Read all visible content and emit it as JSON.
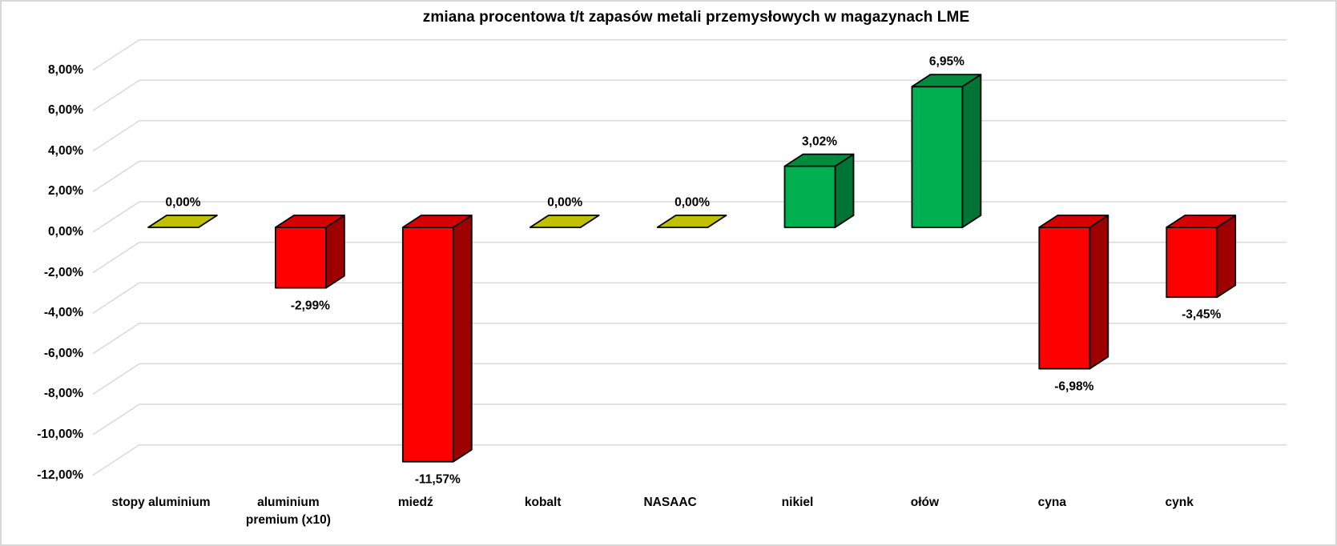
{
  "window": {
    "background": "#FFFFFF",
    "frame_border_color": "#D8D8D8"
  },
  "chart_data": {
    "type": "bar",
    "style": "3d-column",
    "title": "zmiana procentowa t/t zapasów metali przemysłowych w magazynach LME",
    "categories": [
      "stopy aluminium",
      "aluminium premium (x10)",
      "miedź",
      "kobalt",
      "NASAAC",
      "nikiel",
      "ołów",
      "cyna",
      "cynk"
    ],
    "category_lines": [
      [
        "stopy aluminium"
      ],
      [
        "aluminium",
        "premium (x10)"
      ],
      [
        "miedź"
      ],
      [
        "kobalt"
      ],
      [
        "NASAAC"
      ],
      [
        "nikiel"
      ],
      [
        "ołów"
      ],
      [
        "cyna"
      ],
      [
        "cynk"
      ]
    ],
    "values": [
      0,
      -2.99,
      -11.57,
      0,
      0,
      3.02,
      6.95,
      -6.98,
      -3.45
    ],
    "value_labels": [
      "0,00%",
      "-2,99%",
      "-11,57%",
      "0,00%",
      "0,00%",
      "3,02%",
      "6,95%",
      "-6,98%",
      "-3,45%"
    ],
    "xlabel": "",
    "ylabel": "",
    "ylim": [
      -12,
      8
    ],
    "y_ticks": [
      8,
      6,
      4,
      2,
      0,
      -2,
      -4,
      -6,
      -8,
      -10,
      -12
    ],
    "y_tick_labels": [
      "8,00%",
      "6,00%",
      "4,00%",
      "2,00%",
      "0,00%",
      "-2,00%",
      "-4,00%",
      "-6,00%",
      "-8,00%",
      "-10,00%",
      "-12,00%"
    ],
    "grid": true,
    "legend": false,
    "colors": {
      "positive_front": "#00B050",
      "positive_top": "#008B3D",
      "positive_side": "#007434",
      "negative_front": "#FE0000",
      "negative_top": "#D60000",
      "negative_side": "#9E0000",
      "zero_marker": "#C0C000",
      "outline": "#000000",
      "gridline": "#D9D9D9",
      "text": "#000000"
    }
  }
}
